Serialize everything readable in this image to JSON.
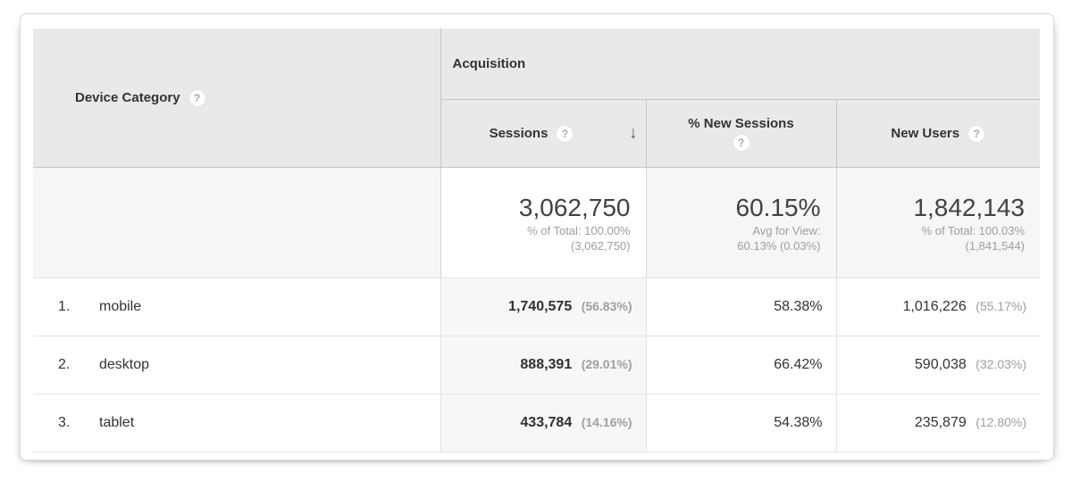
{
  "icons": {
    "help": "?",
    "sort_descending": "↓"
  },
  "colors": {
    "header_bg": "#e9e9e9",
    "summary_bg": "#f6f6f6",
    "sorted_column_bg": "#f7f7f7",
    "primary_text": "#333333",
    "secondary_text": "#9e9e9e",
    "big_number_text": "#424242"
  },
  "table": {
    "dimension_header": "Device Category",
    "group_header": "Acquisition",
    "columns": {
      "sessions": "Sessions",
      "percent_new_sessions": "% New Sessions",
      "new_users": "New Users"
    },
    "summary": {
      "sessions": {
        "value": "3,062,750",
        "line1": "% of Total: 100.00%",
        "line2": "(3,062,750)"
      },
      "percent_new_sessions": {
        "value": "60.15%",
        "line1": "Avg for View:",
        "line2": "60.13% (0.03%)"
      },
      "new_users": {
        "value": "1,842,143",
        "line1": "% of Total: 100.03%",
        "line2": "(1,841,544)"
      }
    },
    "rows": [
      {
        "rank": "1.",
        "label": "mobile",
        "sessions": "1,740,575",
        "sessions_pct": "(56.83%)",
        "percent_new_sessions": "58.38%",
        "new_users": "1,016,226",
        "new_users_pct": "(55.17%)"
      },
      {
        "rank": "2.",
        "label": "desktop",
        "sessions": "888,391",
        "sessions_pct": "(29.01%)",
        "percent_new_sessions": "66.42%",
        "new_users": "590,038",
        "new_users_pct": "(32.03%)"
      },
      {
        "rank": "3.",
        "label": "tablet",
        "sessions": "433,784",
        "sessions_pct": "(14.16%)",
        "percent_new_sessions": "54.38%",
        "new_users": "235,879",
        "new_users_pct": "(12.80%)"
      }
    ]
  }
}
